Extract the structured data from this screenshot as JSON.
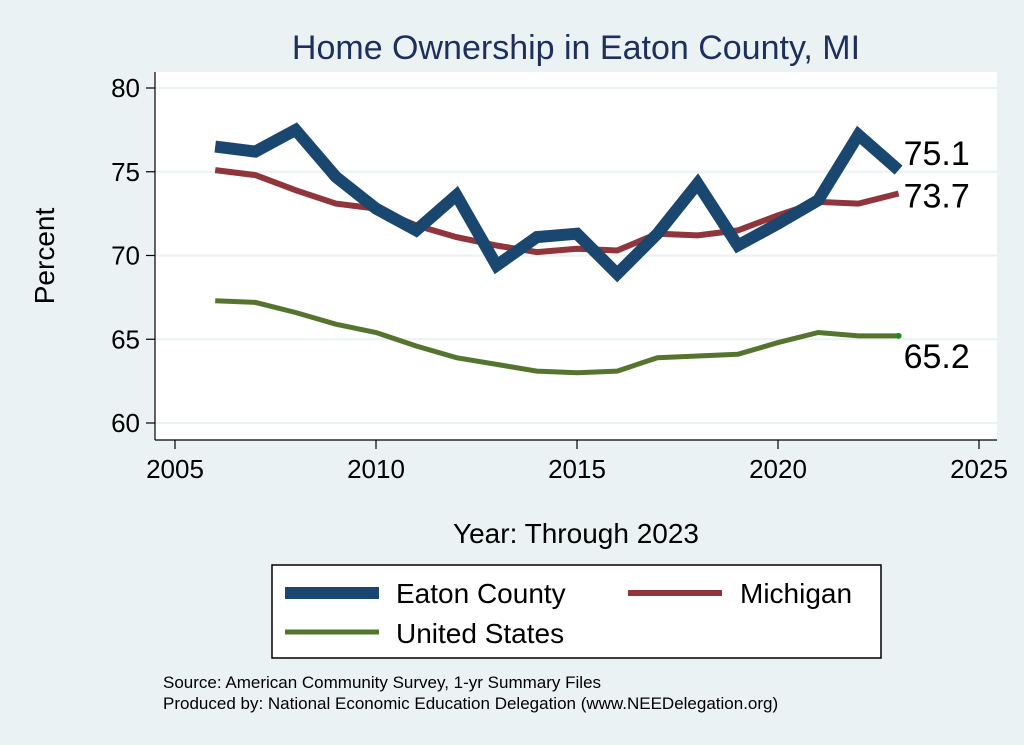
{
  "chart_data": {
    "type": "line",
    "title": "Home Ownership in Eaton County, MI",
    "xlabel": "Year: Through 2023",
    "ylabel": "Percent",
    "xlim": [
      2005,
      2025
    ],
    "ylim": [
      60,
      80
    ],
    "xticks": [
      2005,
      2010,
      2015,
      2020,
      2025
    ],
    "yticks": [
      60,
      65,
      70,
      75,
      80
    ],
    "x": [
      2006,
      2007,
      2008,
      2009,
      2010,
      2011,
      2012,
      2013,
      2014,
      2015,
      2016,
      2017,
      2018,
      2019,
      2020,
      2021,
      2022,
      2023
    ],
    "series": [
      {
        "name": "Eaton County",
        "color": "#1a476f",
        "values": [
          76.5,
          76.2,
          77.5,
          74.7,
          72.8,
          71.5,
          73.6,
          69.4,
          71.1,
          71.3,
          68.9,
          71.3,
          74.3,
          70.6,
          71.9,
          73.3,
          77.2,
          75.1
        ],
        "end_label": "75.1"
      },
      {
        "name": "Michigan",
        "color": "#90353b",
        "values": [
          75.1,
          74.8,
          73.9,
          73.1,
          72.8,
          71.8,
          71.1,
          70.6,
          70.2,
          70.4,
          70.3,
          71.3,
          71.2,
          71.5,
          72.4,
          73.2,
          73.1,
          73.7
        ],
        "end_label": "73.7"
      },
      {
        "name": "United States",
        "color": "#55752f",
        "values": [
          67.3,
          67.2,
          66.6,
          65.9,
          65.4,
          64.6,
          63.9,
          63.5,
          63.1,
          63.0,
          63.1,
          63.9,
          64.0,
          64.1,
          64.8,
          65.4,
          65.2,
          65.2
        ],
        "end_label": "65.2"
      }
    ],
    "legend": {
      "position": "bottom",
      "entries": [
        "Eaton County",
        "Michigan",
        "United States"
      ]
    },
    "notes": [
      "Source: American Community Survey, 1-yr Summary Files",
      "Produced by: National Economic Education Delegation (www.NEEDelegation.org)"
    ]
  }
}
